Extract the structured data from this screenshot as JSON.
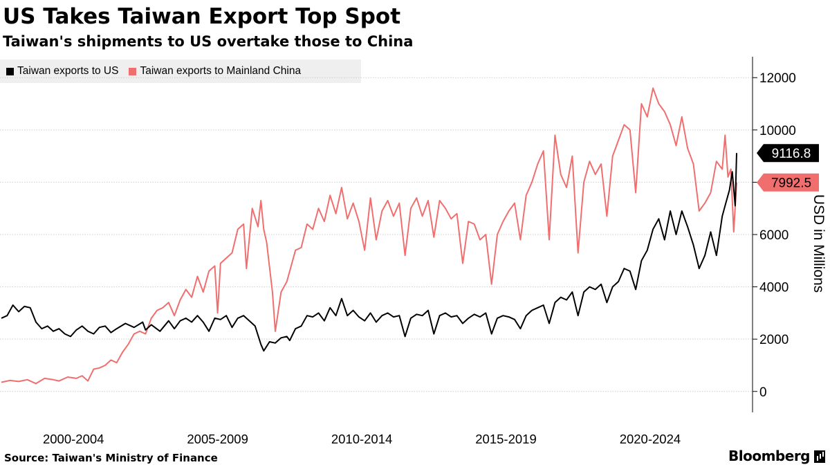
{
  "header": {
    "title": "US Takes Taiwan Export Top Spot",
    "subtitle": "Taiwan's shipments to US overtake those to China"
  },
  "footer": {
    "source": "Source: Taiwan's Ministry of Finance",
    "brand": "Bloomberg"
  },
  "colors": {
    "us": "#000000",
    "china": "#f06e6e",
    "grid": "#cccccc"
  },
  "chart_data": {
    "type": "line",
    "title": "US Takes Taiwan Export Top Spot",
    "subtitle": "Taiwan's shipments to US overtake those to China",
    "ylabel": "USD in Millions",
    "xlabel": "",
    "ylim": [
      -800,
      12800
    ],
    "xlim": [
      2000,
      2025.5
    ],
    "yticks": [
      0,
      2000,
      4000,
      6000,
      8000,
      10000,
      12000
    ],
    "grid": true,
    "legend_position": "top-left",
    "x_tick_labels": [
      {
        "label": "2000-2004",
        "x": 2002.5
      },
      {
        "label": "2005-2009",
        "x": 2007.5
      },
      {
        "label": "2010-2014",
        "x": 2012.5
      },
      {
        "label": "2015-2019",
        "x": 2017.5
      },
      {
        "label": "2020-2024",
        "x": 2022.5
      }
    ],
    "end_labels": {
      "us": "9116.8",
      "china": "7992.5"
    },
    "series": [
      {
        "name": "Taiwan exports to US",
        "key": "us",
        "points": [
          [
            2000.0,
            2800
          ],
          [
            2000.2,
            2900
          ],
          [
            2000.4,
            3300
          ],
          [
            2000.6,
            3050
          ],
          [
            2000.8,
            3250
          ],
          [
            2001.0,
            3200
          ],
          [
            2001.2,
            2650
          ],
          [
            2001.4,
            2400
          ],
          [
            2001.6,
            2500
          ],
          [
            2001.8,
            2300
          ],
          [
            2002.0,
            2400
          ],
          [
            2002.2,
            2200
          ],
          [
            2002.4,
            2100
          ],
          [
            2002.6,
            2350
          ],
          [
            2002.8,
            2500
          ],
          [
            2003.0,
            2300
          ],
          [
            2003.2,
            2200
          ],
          [
            2003.4,
            2450
          ],
          [
            2003.6,
            2500
          ],
          [
            2003.8,
            2250
          ],
          [
            2004.0,
            2400
          ],
          [
            2004.3,
            2600
          ],
          [
            2004.6,
            2450
          ],
          [
            2004.9,
            2650
          ],
          [
            2005.0,
            2350
          ],
          [
            2005.2,
            2550
          ],
          [
            2005.5,
            2300
          ],
          [
            2005.8,
            2700
          ],
          [
            2006.0,
            2400
          ],
          [
            2006.2,
            2700
          ],
          [
            2006.4,
            2800
          ],
          [
            2006.6,
            2650
          ],
          [
            2006.8,
            2900
          ],
          [
            2007.0,
            2650
          ],
          [
            2007.2,
            2300
          ],
          [
            2007.4,
            2800
          ],
          [
            2007.6,
            2750
          ],
          [
            2007.8,
            2900
          ],
          [
            2008.0,
            2450
          ],
          [
            2008.2,
            2800
          ],
          [
            2008.4,
            2900
          ],
          [
            2008.6,
            2700
          ],
          [
            2008.8,
            2500
          ],
          [
            2009.0,
            1800
          ],
          [
            2009.1,
            1550
          ],
          [
            2009.3,
            1900
          ],
          [
            2009.5,
            1850
          ],
          [
            2009.7,
            2050
          ],
          [
            2009.9,
            2100
          ],
          [
            2010.0,
            1950
          ],
          [
            2010.2,
            2400
          ],
          [
            2010.4,
            2500
          ],
          [
            2010.6,
            2900
          ],
          [
            2010.8,
            2850
          ],
          [
            2011.0,
            3000
          ],
          [
            2011.2,
            2700
          ],
          [
            2011.4,
            3200
          ],
          [
            2011.6,
            2900
          ],
          [
            2011.8,
            3550
          ],
          [
            2012.0,
            2900
          ],
          [
            2012.2,
            3100
          ],
          [
            2012.4,
            2850
          ],
          [
            2012.6,
            2700
          ],
          [
            2012.8,
            3000
          ],
          [
            2013.0,
            2650
          ],
          [
            2013.2,
            2900
          ],
          [
            2013.4,
            3000
          ],
          [
            2013.6,
            2850
          ],
          [
            2013.8,
            2900
          ],
          [
            2014.0,
            2100
          ],
          [
            2014.2,
            2800
          ],
          [
            2014.4,
            2950
          ],
          [
            2014.6,
            2900
          ],
          [
            2014.8,
            3100
          ],
          [
            2015.0,
            2200
          ],
          [
            2015.2,
            2900
          ],
          [
            2015.4,
            3000
          ],
          [
            2015.6,
            2850
          ],
          [
            2015.8,
            2900
          ],
          [
            2016.0,
            2600
          ],
          [
            2016.2,
            2800
          ],
          [
            2016.4,
            2950
          ],
          [
            2016.6,
            2850
          ],
          [
            2016.8,
            3000
          ],
          [
            2017.0,
            2200
          ],
          [
            2017.2,
            2800
          ],
          [
            2017.4,
            2900
          ],
          [
            2017.6,
            2850
          ],
          [
            2017.8,
            2750
          ],
          [
            2018.0,
            2400
          ],
          [
            2018.2,
            2900
          ],
          [
            2018.4,
            3100
          ],
          [
            2018.6,
            3200
          ],
          [
            2018.8,
            3300
          ],
          [
            2019.0,
            2600
          ],
          [
            2019.2,
            3400
          ],
          [
            2019.4,
            3600
          ],
          [
            2019.6,
            3500
          ],
          [
            2019.8,
            3800
          ],
          [
            2020.0,
            2900
          ],
          [
            2020.2,
            3800
          ],
          [
            2020.4,
            4000
          ],
          [
            2020.6,
            3900
          ],
          [
            2020.8,
            4100
          ],
          [
            2021.0,
            3400
          ],
          [
            2021.2,
            4000
          ],
          [
            2021.4,
            4200
          ],
          [
            2021.6,
            4700
          ],
          [
            2021.8,
            4600
          ],
          [
            2022.0,
            3900
          ],
          [
            2022.2,
            5000
          ],
          [
            2022.4,
            5400
          ],
          [
            2022.6,
            6200
          ],
          [
            2022.8,
            6600
          ],
          [
            2023.0,
            5800
          ],
          [
            2023.2,
            6900
          ],
          [
            2023.4,
            6000
          ],
          [
            2023.6,
            6900
          ],
          [
            2023.8,
            6300
          ],
          [
            2024.0,
            5600
          ],
          [
            2024.2,
            4700
          ],
          [
            2024.4,
            5200
          ],
          [
            2024.6,
            6100
          ],
          [
            2024.8,
            5200
          ],
          [
            2025.0,
            6700
          ],
          [
            2025.1,
            7100
          ],
          [
            2025.25,
            7700
          ],
          [
            2025.35,
            8400
          ],
          [
            2025.45,
            7100
          ],
          [
            2025.5,
            9117
          ]
        ]
      },
      {
        "name": "Taiwan exports to Mainland China",
        "key": "china",
        "points": [
          [
            2000.0,
            350
          ],
          [
            2000.3,
            420
          ],
          [
            2000.6,
            380
          ],
          [
            2000.9,
            450
          ],
          [
            2001.2,
            300
          ],
          [
            2001.5,
            500
          ],
          [
            2001.8,
            450
          ],
          [
            2002.0,
            400
          ],
          [
            2002.3,
            550
          ],
          [
            2002.6,
            500
          ],
          [
            2002.8,
            600
          ],
          [
            2003.0,
            400
          ],
          [
            2003.2,
            850
          ],
          [
            2003.4,
            900
          ],
          [
            2003.6,
            1000
          ],
          [
            2003.8,
            1200
          ],
          [
            2004.0,
            1100
          ],
          [
            2004.2,
            1500
          ],
          [
            2004.4,
            1800
          ],
          [
            2004.6,
            2200
          ],
          [
            2004.8,
            2300
          ],
          [
            2005.0,
            2200
          ],
          [
            2005.2,
            2800
          ],
          [
            2005.4,
            3100
          ],
          [
            2005.6,
            3200
          ],
          [
            2005.8,
            3400
          ],
          [
            2006.0,
            2900
          ],
          [
            2006.2,
            3500
          ],
          [
            2006.4,
            3900
          ],
          [
            2006.6,
            3600
          ],
          [
            2006.8,
            4400
          ],
          [
            2007.0,
            3800
          ],
          [
            2007.2,
            4600
          ],
          [
            2007.4,
            4800
          ],
          [
            2007.5,
            3000
          ],
          [
            2007.6,
            4900
          ],
          [
            2007.8,
            5100
          ],
          [
            2008.0,
            5300
          ],
          [
            2008.2,
            6200
          ],
          [
            2008.4,
            6400
          ],
          [
            2008.5,
            4700
          ],
          [
            2008.7,
            7000
          ],
          [
            2008.9,
            6300
          ],
          [
            2009.0,
            7300
          ],
          [
            2009.1,
            6200
          ],
          [
            2009.2,
            5700
          ],
          [
            2009.4,
            3800
          ],
          [
            2009.5,
            2300
          ],
          [
            2009.7,
            3800
          ],
          [
            2009.9,
            4200
          ],
          [
            2010.0,
            4600
          ],
          [
            2010.2,
            5400
          ],
          [
            2010.4,
            5500
          ],
          [
            2010.6,
            6400
          ],
          [
            2010.8,
            6200
          ],
          [
            2011.0,
            7000
          ],
          [
            2011.2,
            6500
          ],
          [
            2011.4,
            7500
          ],
          [
            2011.6,
            6800
          ],
          [
            2011.8,
            7800
          ],
          [
            2012.0,
            6600
          ],
          [
            2012.2,
            7200
          ],
          [
            2012.4,
            6500
          ],
          [
            2012.6,
            5400
          ],
          [
            2012.8,
            7400
          ],
          [
            2013.0,
            5800
          ],
          [
            2013.2,
            6900
          ],
          [
            2013.4,
            7300
          ],
          [
            2013.6,
            6700
          ],
          [
            2013.8,
            7200
          ],
          [
            2014.0,
            5200
          ],
          [
            2014.2,
            7000
          ],
          [
            2014.4,
            7400
          ],
          [
            2014.6,
            6700
          ],
          [
            2014.8,
            7300
          ],
          [
            2015.0,
            5900
          ],
          [
            2015.2,
            7300
          ],
          [
            2015.4,
            7000
          ],
          [
            2015.6,
            6600
          ],
          [
            2015.8,
            6800
          ],
          [
            2016.0,
            4900
          ],
          [
            2016.2,
            6500
          ],
          [
            2016.4,
            6400
          ],
          [
            2016.6,
            5800
          ],
          [
            2016.8,
            6000
          ],
          [
            2017.0,
            4100
          ],
          [
            2017.2,
            6000
          ],
          [
            2017.4,
            6500
          ],
          [
            2017.6,
            6900
          ],
          [
            2017.8,
            7200
          ],
          [
            2018.0,
            5800
          ],
          [
            2018.2,
            7500
          ],
          [
            2018.4,
            8000
          ],
          [
            2018.6,
            8700
          ],
          [
            2018.8,
            9200
          ],
          [
            2019.0,
            5800
          ],
          [
            2019.2,
            9800
          ],
          [
            2019.4,
            8300
          ],
          [
            2019.6,
            7800
          ],
          [
            2019.8,
            9000
          ],
          [
            2020.0,
            5300
          ],
          [
            2020.2,
            8000
          ],
          [
            2020.4,
            8800
          ],
          [
            2020.6,
            8300
          ],
          [
            2020.8,
            8700
          ],
          [
            2021.0,
            6700
          ],
          [
            2021.2,
            9000
          ],
          [
            2021.4,
            9600
          ],
          [
            2021.6,
            10200
          ],
          [
            2021.8,
            10000
          ],
          [
            2022.0,
            7600
          ],
          [
            2022.2,
            11000
          ],
          [
            2022.4,
            10500
          ],
          [
            2022.6,
            11600
          ],
          [
            2022.8,
            11000
          ],
          [
            2023.0,
            10700
          ],
          [
            2023.2,
            10200
          ],
          [
            2023.4,
            9400
          ],
          [
            2023.6,
            10500
          ],
          [
            2023.8,
            9300
          ],
          [
            2024.0,
            8700
          ],
          [
            2024.2,
            6900
          ],
          [
            2024.4,
            7200
          ],
          [
            2024.6,
            7600
          ],
          [
            2024.8,
            8800
          ],
          [
            2025.0,
            8500
          ],
          [
            2025.1,
            9800
          ],
          [
            2025.2,
            8200
          ],
          [
            2025.3,
            8500
          ],
          [
            2025.4,
            6100
          ],
          [
            2025.5,
            7992
          ]
        ]
      }
    ]
  }
}
